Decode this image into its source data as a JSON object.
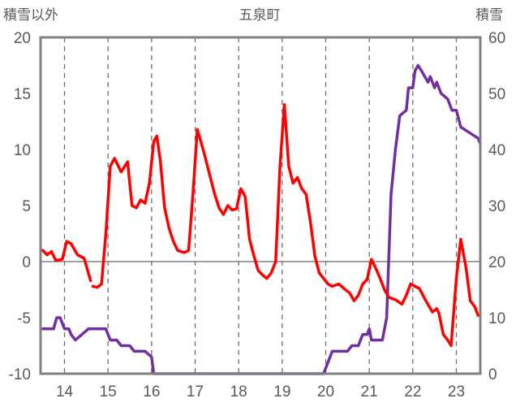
{
  "chart_data": {
    "type": "line",
    "title": "五泉町",
    "left_axis_label": "積雪以外",
    "right_axis_label": "積雪",
    "x_ticks": [
      "14",
      "15",
      "16",
      "17",
      "18",
      "19",
      "20",
      "21",
      "22",
      "23"
    ],
    "xlim": [
      13.45,
      23.55
    ],
    "y_left_ticks": [
      "-10",
      "-5",
      "0",
      "5",
      "10",
      "15",
      "20"
    ],
    "ylim_left": [
      -10,
      20
    ],
    "y_right_ticks": [
      "0",
      "10",
      "20",
      "30",
      "40",
      "50",
      "60"
    ],
    "ylim_right": [
      0,
      60
    ],
    "grid": {
      "vertical": "dashed",
      "horizontal": "none",
      "zero_line": true
    },
    "colors": {
      "series_1": "#ff0000",
      "series_2": "#7030a0",
      "axis": "#808080",
      "text": "#595959"
    },
    "series": [
      {
        "axis": "left",
        "color": "#ff0000",
        "segments": [
          [
            [
              13.5,
              1.0
            ],
            [
              13.6,
              0.6
            ],
            [
              13.7,
              0.9
            ],
            [
              13.8,
              0.1
            ],
            [
              13.95,
              0.2
            ],
            [
              14.05,
              1.8
            ],
            [
              14.15,
              1.6
            ],
            [
              14.3,
              0.6
            ],
            [
              14.45,
              0.3
            ],
            [
              14.6,
              -1.7
            ]
          ],
          [
            [
              14.65,
              -2.2
            ],
            [
              14.75,
              -2.3
            ],
            [
              14.85,
              -2.0
            ],
            [
              14.95,
              2.5
            ],
            [
              15.05,
              8.5
            ],
            [
              15.15,
              9.2
            ],
            [
              15.3,
              8.0
            ],
            [
              15.45,
              8.9
            ],
            [
              15.55,
              5.0
            ],
            [
              15.65,
              4.8
            ],
            [
              15.75,
              5.5
            ],
            [
              15.85,
              5.2
            ],
            [
              15.95,
              7.0
            ],
            [
              16.05,
              10.7
            ],
            [
              16.12,
              11.2
            ],
            [
              16.2,
              9.0
            ],
            [
              16.3,
              4.8
            ],
            [
              16.4,
              3.0
            ],
            [
              16.5,
              1.8
            ],
            [
              16.6,
              1.0
            ],
            [
              16.75,
              0.8
            ],
            [
              16.85,
              1.0
            ],
            [
              16.95,
              6.0
            ],
            [
              17.05,
              11.8
            ],
            [
              17.2,
              9.8
            ],
            [
              17.35,
              7.5
            ],
            [
              17.45,
              6.0
            ],
            [
              17.55,
              4.8
            ],
            [
              17.65,
              4.2
            ],
            [
              17.75,
              5.0
            ],
            [
              17.85,
              4.6
            ],
            [
              17.95,
              4.7
            ],
            [
              18.05,
              6.5
            ],
            [
              18.15,
              5.8
            ],
            [
              18.25,
              2.0
            ],
            [
              18.35,
              0.5
            ],
            [
              18.45,
              -0.8
            ],
            [
              18.55,
              -1.2
            ],
            [
              18.65,
              -1.5
            ],
            [
              18.75,
              -1.0
            ],
            [
              18.85,
              0.0
            ],
            [
              18.95,
              8.5
            ],
            [
              19.05,
              14.0
            ],
            [
              19.15,
              8.5
            ],
            [
              19.25,
              7.0
            ],
            [
              19.35,
              7.5
            ],
            [
              19.45,
              6.5
            ],
            [
              19.55,
              6.0
            ],
            [
              19.65,
              3.5
            ],
            [
              19.75,
              0.5
            ],
            [
              19.85,
              -1.0
            ],
            [
              19.95,
              -1.5
            ],
            [
              20.05,
              -2.0
            ],
            [
              20.15,
              -2.2
            ],
            [
              20.3,
              -2.0
            ],
            [
              20.45,
              -2.5
            ],
            [
              20.55,
              -2.8
            ],
            [
              20.65,
              -3.5
            ],
            [
              20.75,
              -3.0
            ],
            [
              20.85,
              -2.0
            ],
            [
              20.95,
              -1.6
            ],
            [
              21.05,
              0.2
            ],
            [
              21.15,
              -0.6
            ],
            [
              21.25,
              -1.5
            ],
            [
              21.35,
              -2.5
            ],
            [
              21.45,
              -3.2
            ],
            [
              21.6,
              -3.4
            ],
            [
              21.75,
              -3.8
            ],
            [
              21.85,
              -3.0
            ],
            [
              21.95,
              -2.0
            ],
            [
              22.05,
              -2.2
            ],
            [
              22.15,
              -2.4
            ],
            [
              22.3,
              -3.5
            ],
            [
              22.45,
              -4.5
            ],
            [
              22.55,
              -4.2
            ],
            [
              22.6,
              -4.6
            ],
            [
              22.7,
              -6.5
            ],
            [
              22.8,
              -7.0
            ],
            [
              22.88,
              -7.5
            ],
            [
              23.0,
              -1.5
            ],
            [
              23.1,
              2.0
            ],
            [
              23.22,
              -0.5
            ],
            [
              23.32,
              -3.5
            ],
            [
              23.42,
              -4.0
            ],
            [
              23.5,
              -4.8
            ]
          ]
        ]
      },
      {
        "axis": "right",
        "color": "#7030a0",
        "segments": [
          [
            [
              13.5,
              8
            ],
            [
              13.75,
              8
            ],
            [
              13.82,
              10
            ],
            [
              13.9,
              10
            ],
            [
              14.0,
              8
            ],
            [
              14.1,
              8
            ],
            [
              14.15,
              7
            ],
            [
              14.25,
              6
            ],
            [
              14.4,
              7
            ],
            [
              14.55,
              8
            ],
            [
              14.95,
              8
            ],
            [
              15.05,
              6
            ],
            [
              15.2,
              6
            ],
            [
              15.3,
              5
            ],
            [
              15.5,
              5
            ],
            [
              15.6,
              4
            ],
            [
              15.85,
              4
            ],
            [
              16.0,
              3
            ],
            [
              16.05,
              0
            ],
            [
              19.95,
              0
            ],
            [
              20.05,
              2
            ],
            [
              20.15,
              4
            ],
            [
              20.5,
              4
            ],
            [
              20.6,
              5
            ],
            [
              20.75,
              5
            ],
            [
              20.85,
              7
            ],
            [
              20.95,
              7
            ],
            [
              21.0,
              8
            ],
            [
              21.05,
              6
            ],
            [
              21.3,
              6
            ],
            [
              21.4,
              10
            ],
            [
              21.5,
              32
            ],
            [
              21.6,
              40
            ],
            [
              21.7,
              46
            ],
            [
              21.85,
              47
            ],
            [
              21.9,
              51
            ],
            [
              22.0,
              51
            ],
            [
              22.05,
              54
            ],
            [
              22.12,
              55
            ],
            [
              22.2,
              54
            ],
            [
              22.35,
              52
            ],
            [
              22.4,
              53
            ],
            [
              22.5,
              51
            ],
            [
              22.55,
              52
            ],
            [
              22.65,
              50
            ],
            [
              22.8,
              49
            ],
            [
              22.9,
              47
            ],
            [
              23.0,
              47
            ],
            [
              23.1,
              44
            ],
            [
              23.3,
              43
            ],
            [
              23.5,
              42
            ],
            [
              23.55,
              41
            ]
          ]
        ]
      }
    ]
  }
}
